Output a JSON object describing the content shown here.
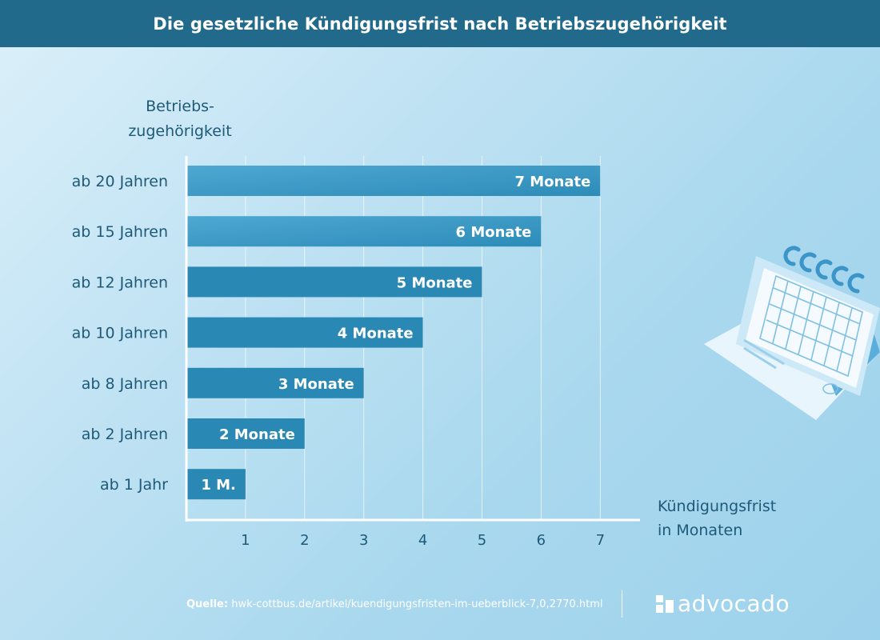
{
  "header": {
    "title": "Die gesetzliche Kündigungsfrist nach Betriebszugehörigkeit"
  },
  "chart_data": {
    "type": "bar",
    "orientation": "horizontal",
    "title": "Die gesetzliche Kündigungsfrist nach Betriebszugehörigkeit",
    "ylabel": "Betriebs- zugehörigkeit",
    "ylabel_lines": [
      "Betriebs-",
      "zugehörigkeit"
    ],
    "xlabel": "Kündigungsfrist in Monaten",
    "xlabel_lines": [
      "Kündigungsfrist",
      "in Monaten"
    ],
    "categories": [
      "ab 20 Jahren",
      "ab 15 Jahren",
      "ab 12 Jahren",
      "ab 10 Jahren",
      "ab 8 Jahren",
      "ab 2 Jahren",
      "ab 1 Jahr"
    ],
    "values": [
      7,
      6,
      5,
      4,
      3,
      2,
      1
    ],
    "value_labels": [
      "7 Monate",
      "6 Monate",
      "5 Monate",
      "4 Monate",
      "3 Monate",
      "2 Monate",
      "1 M."
    ],
    "xticks": [
      "1",
      "2",
      "3",
      "4",
      "5",
      "6",
      "7"
    ],
    "xlim": [
      0,
      7
    ],
    "grid": true,
    "colors": {
      "bar_light": "#4aa5d0",
      "bar_dark": "#2a88b4",
      "text": "#1e5a78",
      "header": "#226a8c"
    }
  },
  "footer": {
    "source_label": "Quelle:",
    "source_text": "hwk-cottbus.de/artikel/kuendigungsfristen-im-ueberblick-7,0,2770.html",
    "logo_text": "advocado"
  },
  "illustration": {
    "icon": "calendar-icon"
  }
}
